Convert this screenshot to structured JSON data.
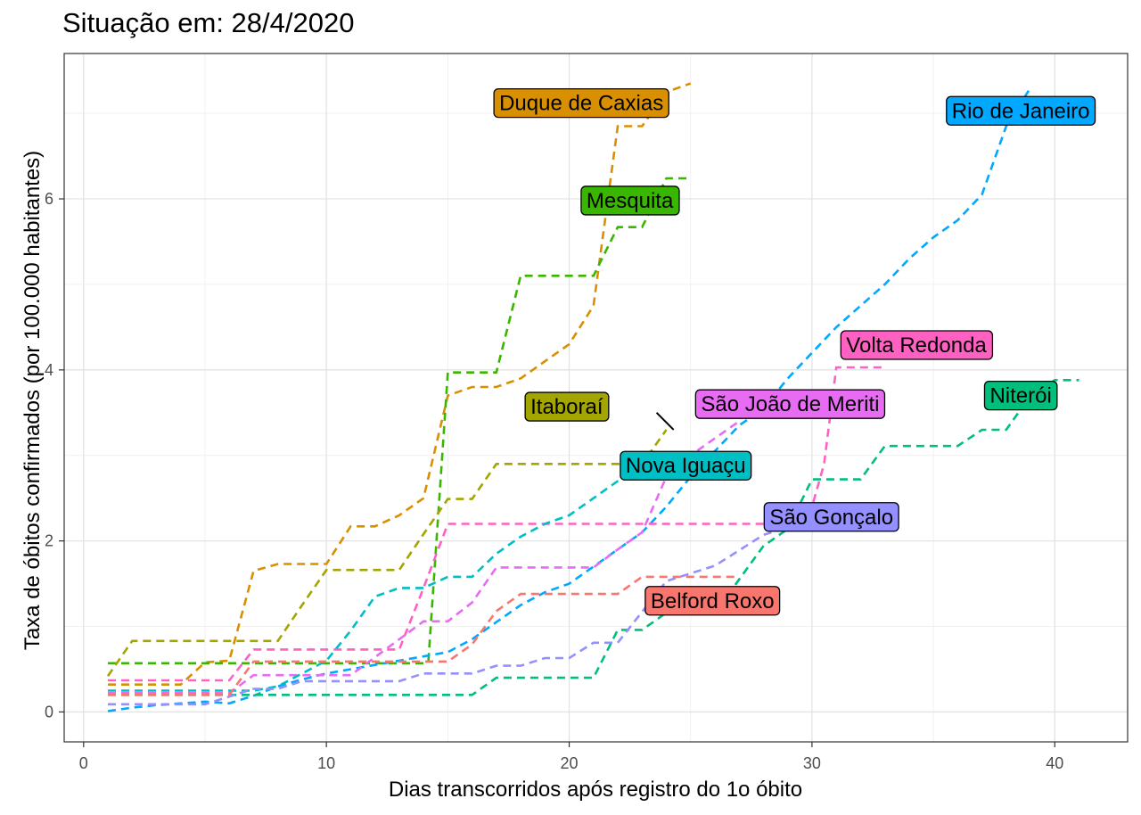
{
  "title": "Situação em: 28/4/2020",
  "chart_data": {
    "type": "line",
    "title": "Situação em: 28/4/2020",
    "xlabel": "Dias transcorridos após registro do 1o óbito",
    "ylabel": "Taxa de óbitos confirmados (por 100.000 habitantes)",
    "xlim": [
      -0.8,
      43
    ],
    "ylim": [
      -0.35,
      7.7
    ],
    "x_ticks": [
      0,
      10,
      20,
      30,
      40
    ],
    "y_ticks": [
      0,
      2,
      4,
      6
    ],
    "grid": true,
    "line_style": "dashed",
    "series": [
      {
        "name": "Duque de Caxias",
        "color": "#d89000",
        "points": [
          [
            1,
            0.32
          ],
          [
            2,
            0.32
          ],
          [
            4,
            0.32
          ],
          [
            5,
            0.58
          ],
          [
            6,
            0.6
          ],
          [
            7,
            1.65
          ],
          [
            8,
            1.73
          ],
          [
            9,
            1.73
          ],
          [
            10,
            1.73
          ],
          [
            11,
            2.17
          ],
          [
            12,
            2.17
          ],
          [
            13,
            2.3
          ],
          [
            14,
            2.5
          ],
          [
            15,
            3.7
          ],
          [
            16,
            3.8
          ],
          [
            17,
            3.8
          ],
          [
            18,
            3.9
          ],
          [
            19,
            4.1
          ],
          [
            20,
            4.3
          ],
          [
            21,
            4.75
          ],
          [
            22,
            6.85
          ],
          [
            23,
            6.85
          ],
          [
            24,
            7.25
          ],
          [
            25,
            7.35
          ]
        ],
        "label": {
          "x": 20.5,
          "y": 7.12
        }
      },
      {
        "name": "Mesquita",
        "color": "#39b600",
        "points": [
          [
            1,
            0.57
          ],
          [
            2,
            0.57
          ],
          [
            3,
            0.57
          ],
          [
            4,
            0.57
          ],
          [
            5,
            0.57
          ],
          [
            6,
            0.57
          ],
          [
            7,
            0.57
          ],
          [
            8,
            0.57
          ],
          [
            9,
            0.57
          ],
          [
            10,
            0.57
          ],
          [
            11,
            0.57
          ],
          [
            12,
            0.57
          ],
          [
            13,
            0.57
          ],
          [
            14,
            0.57
          ],
          [
            14.2,
            0.6
          ],
          [
            15,
            3.97
          ],
          [
            16,
            3.97
          ],
          [
            17,
            3.97
          ],
          [
            18,
            5.1
          ],
          [
            19,
            5.1
          ],
          [
            20,
            5.1
          ],
          [
            21,
            5.1
          ],
          [
            22,
            5.67
          ],
          [
            23,
            5.67
          ],
          [
            24,
            6.24
          ],
          [
            25,
            6.24
          ]
        ],
        "label": {
          "x": 22.5,
          "y": 5.98
        }
      },
      {
        "name": "Rio de Janeiro",
        "color": "#00a9ff",
        "points": [
          [
            1,
            0.01
          ],
          [
            2,
            0.05
          ],
          [
            3,
            0.08
          ],
          [
            4,
            0.1
          ],
          [
            5,
            0.12
          ],
          [
            6,
            0.1
          ],
          [
            7,
            0.19
          ],
          [
            8,
            0.3
          ],
          [
            9,
            0.38
          ],
          [
            10,
            0.45
          ],
          [
            11,
            0.5
          ],
          [
            12,
            0.55
          ],
          [
            13,
            0.6
          ],
          [
            14,
            0.65
          ],
          [
            15,
            0.7
          ],
          [
            16,
            0.85
          ],
          [
            17,
            1.05
          ],
          [
            18,
            1.25
          ],
          [
            19,
            1.4
          ],
          [
            20,
            1.5
          ],
          [
            21,
            1.7
          ],
          [
            22,
            1.9
          ],
          [
            23,
            2.1
          ],
          [
            24,
            2.4
          ],
          [
            25,
            2.75
          ],
          [
            26,
            3.05
          ],
          [
            27,
            3.35
          ],
          [
            28,
            3.55
          ],
          [
            29,
            3.9
          ],
          [
            30,
            4.2
          ],
          [
            31,
            4.5
          ],
          [
            32,
            4.75
          ],
          [
            33,
            5.0
          ],
          [
            34,
            5.3
          ],
          [
            35,
            5.55
          ],
          [
            36,
            5.75
          ],
          [
            37,
            6.05
          ],
          [
            38,
            6.85
          ],
          [
            39,
            7.3
          ]
        ],
        "label": {
          "x": 38.6,
          "y": 7.03
        }
      },
      {
        "name": "Volta Redonda",
        "color": "#ff61c3",
        "points": [
          [
            1,
            0.37
          ],
          [
            2,
            0.37
          ],
          [
            3,
            0.37
          ],
          [
            4,
            0.37
          ],
          [
            5,
            0.37
          ],
          [
            6,
            0.37
          ],
          [
            7,
            0.73
          ],
          [
            8,
            0.73
          ],
          [
            9,
            0.73
          ],
          [
            10,
            0.73
          ],
          [
            11,
            0.73
          ],
          [
            12,
            0.73
          ],
          [
            13,
            0.73
          ],
          [
            14,
            1.45
          ],
          [
            15,
            2.2
          ],
          [
            16,
            2.2
          ],
          [
            17,
            2.2
          ],
          [
            18,
            2.2
          ],
          [
            19,
            2.2
          ],
          [
            20,
            2.2
          ],
          [
            21,
            2.2
          ],
          [
            22,
            2.2
          ],
          [
            23,
            2.2
          ],
          [
            24,
            2.2
          ],
          [
            25,
            2.2
          ],
          [
            26,
            2.2
          ],
          [
            27,
            2.2
          ],
          [
            28,
            2.2
          ],
          [
            29,
            2.2
          ],
          [
            30,
            2.4
          ],
          [
            30.5,
            2.9
          ],
          [
            31,
            4.03
          ],
          [
            32,
            4.03
          ],
          [
            33,
            4.03
          ]
        ],
        "label": {
          "x": 34.3,
          "y": 4.29
        }
      },
      {
        "name": "Niterói",
        "color": "#00bf7d",
        "points": [
          [
            1,
            0.2
          ],
          [
            2,
            0.2
          ],
          [
            3,
            0.2
          ],
          [
            4,
            0.2
          ],
          [
            5,
            0.2
          ],
          [
            6,
            0.2
          ],
          [
            7,
            0.2
          ],
          [
            8,
            0.2
          ],
          [
            9,
            0.2
          ],
          [
            10,
            0.2
          ],
          [
            11,
            0.2
          ],
          [
            12,
            0.2
          ],
          [
            13,
            0.2
          ],
          [
            14,
            0.2
          ],
          [
            15,
            0.2
          ],
          [
            16,
            0.2
          ],
          [
            17,
            0.4
          ],
          [
            18,
            0.4
          ],
          [
            19,
            0.4
          ],
          [
            20,
            0.4
          ],
          [
            21,
            0.4
          ],
          [
            22,
            0.96
          ],
          [
            23,
            0.96
          ],
          [
            24,
            1.16
          ],
          [
            25,
            1.16
          ],
          [
            26,
            1.16
          ],
          [
            27,
            1.55
          ],
          [
            28,
            1.94
          ],
          [
            29,
            2.14
          ],
          [
            30,
            2.72
          ],
          [
            31,
            2.72
          ],
          [
            32,
            2.72
          ],
          [
            33,
            3.11
          ],
          [
            34,
            3.11
          ],
          [
            35,
            3.11
          ],
          [
            36,
            3.11
          ],
          [
            37,
            3.3
          ],
          [
            38,
            3.3
          ],
          [
            39,
            3.7
          ],
          [
            40,
            3.88
          ],
          [
            41,
            3.88
          ]
        ],
        "label": {
          "x": 38.6,
          "y": 3.7
        }
      },
      {
        "name": "São João de Meriti",
        "color": "#e76bf3",
        "points": [
          [
            1,
            0.22
          ],
          [
            2,
            0.22
          ],
          [
            3,
            0.22
          ],
          [
            4,
            0.22
          ],
          [
            5,
            0.22
          ],
          [
            6,
            0.22
          ],
          [
            7,
            0.43
          ],
          [
            8,
            0.43
          ],
          [
            9,
            0.43
          ],
          [
            10,
            0.43
          ],
          [
            11,
            0.43
          ],
          [
            12,
            0.64
          ],
          [
            13,
            0.85
          ],
          [
            14,
            1.06
          ],
          [
            15,
            1.06
          ],
          [
            16,
            1.28
          ],
          [
            17,
            1.69
          ],
          [
            18,
            1.69
          ],
          [
            19,
            1.69
          ],
          [
            20,
            1.69
          ],
          [
            21,
            1.69
          ],
          [
            22,
            1.9
          ],
          [
            23,
            2.1
          ],
          [
            24,
            2.75
          ],
          [
            25,
            3.0
          ],
          [
            26,
            3.2
          ],
          [
            27,
            3.4
          ]
        ],
        "label": {
          "x": 29.1,
          "y": 3.6
        }
      },
      {
        "name": "Itaboraí",
        "color": "#a3a500",
        "points": [
          [
            1,
            0.42
          ],
          [
            2,
            0.83
          ],
          [
            3,
            0.83
          ],
          [
            4,
            0.83
          ],
          [
            5,
            0.83
          ],
          [
            6,
            0.83
          ],
          [
            7,
            0.83
          ],
          [
            8,
            0.83
          ],
          [
            9,
            1.25
          ],
          [
            10,
            1.66
          ],
          [
            11,
            1.66
          ],
          [
            12,
            1.66
          ],
          [
            13,
            1.66
          ],
          [
            14,
            2.08
          ],
          [
            15,
            2.49
          ],
          [
            16,
            2.49
          ],
          [
            17,
            2.9
          ],
          [
            18,
            2.9
          ],
          [
            19,
            2.9
          ],
          [
            20,
            2.9
          ],
          [
            21,
            2.9
          ],
          [
            22,
            2.9
          ],
          [
            23,
            2.9
          ],
          [
            24,
            3.3
          ]
        ],
        "label": {
          "x": 19.9,
          "y": 3.57
        }
      },
      {
        "name": "Nova Iguaçu",
        "color": "#00bfc4",
        "points": [
          [
            1,
            0.25
          ],
          [
            2,
            0.25
          ],
          [
            3,
            0.25
          ],
          [
            4,
            0.25
          ],
          [
            5,
            0.25
          ],
          [
            6,
            0.25
          ],
          [
            7,
            0.25
          ],
          [
            8,
            0.3
          ],
          [
            9,
            0.45
          ],
          [
            10,
            0.6
          ],
          [
            11,
            0.95
          ],
          [
            12,
            1.35
          ],
          [
            13,
            1.45
          ],
          [
            14,
            1.45
          ],
          [
            15,
            1.58
          ],
          [
            16,
            1.58
          ],
          [
            17,
            1.85
          ],
          [
            18,
            2.05
          ],
          [
            19,
            2.2
          ],
          [
            20,
            2.3
          ],
          [
            21,
            2.5
          ],
          [
            22,
            2.7
          ],
          [
            23,
            2.8
          ],
          [
            24,
            2.88
          ]
        ],
        "label": {
          "x": 24.8,
          "y": 2.88
        }
      },
      {
        "name": "São Gonçalo",
        "color": "#9590ff",
        "points": [
          [
            1,
            0.09
          ],
          [
            2,
            0.09
          ],
          [
            3,
            0.09
          ],
          [
            4,
            0.09
          ],
          [
            5,
            0.09
          ],
          [
            6,
            0.18
          ],
          [
            7,
            0.27
          ],
          [
            8,
            0.27
          ],
          [
            9,
            0.36
          ],
          [
            10,
            0.36
          ],
          [
            11,
            0.36
          ],
          [
            12,
            0.36
          ],
          [
            13,
            0.36
          ],
          [
            14,
            0.45
          ],
          [
            15,
            0.45
          ],
          [
            16,
            0.45
          ],
          [
            17,
            0.54
          ],
          [
            18,
            0.54
          ],
          [
            19,
            0.63
          ],
          [
            20,
            0.63
          ],
          [
            21,
            0.81
          ],
          [
            22,
            0.81
          ],
          [
            23,
            1.17
          ],
          [
            24,
            1.53
          ],
          [
            25,
            1.62
          ],
          [
            26,
            1.71
          ],
          [
            27,
            1.89
          ],
          [
            28,
            2.07
          ],
          [
            29,
            2.16
          ]
        ],
        "label": {
          "x": 30.8,
          "y": 2.28
        }
      },
      {
        "name": "Belford Roxo",
        "color": "#f8766d",
        "points": [
          [
            1,
            0.2
          ],
          [
            2,
            0.2
          ],
          [
            3,
            0.2
          ],
          [
            4,
            0.2
          ],
          [
            5,
            0.2
          ],
          [
            6,
            0.2
          ],
          [
            7,
            0.59
          ],
          [
            8,
            0.59
          ],
          [
            9,
            0.59
          ],
          [
            10,
            0.59
          ],
          [
            11,
            0.59
          ],
          [
            12,
            0.59
          ],
          [
            13,
            0.59
          ],
          [
            14,
            0.59
          ],
          [
            15,
            0.59
          ],
          [
            16,
            0.79
          ],
          [
            17,
            1.18
          ],
          [
            18,
            1.38
          ],
          [
            19,
            1.38
          ],
          [
            20,
            1.38
          ],
          [
            21,
            1.38
          ],
          [
            22,
            1.38
          ],
          [
            23,
            1.58
          ],
          [
            24,
            1.58
          ],
          [
            25,
            1.58
          ],
          [
            26,
            1.58
          ],
          [
            27,
            1.58
          ]
        ],
        "label": {
          "x": 25.9,
          "y": 1.3
        }
      }
    ],
    "annotation_segments": [
      {
        "from": [
          23.6,
          3.5
        ],
        "to": [
          24.3,
          3.3
        ]
      }
    ]
  }
}
